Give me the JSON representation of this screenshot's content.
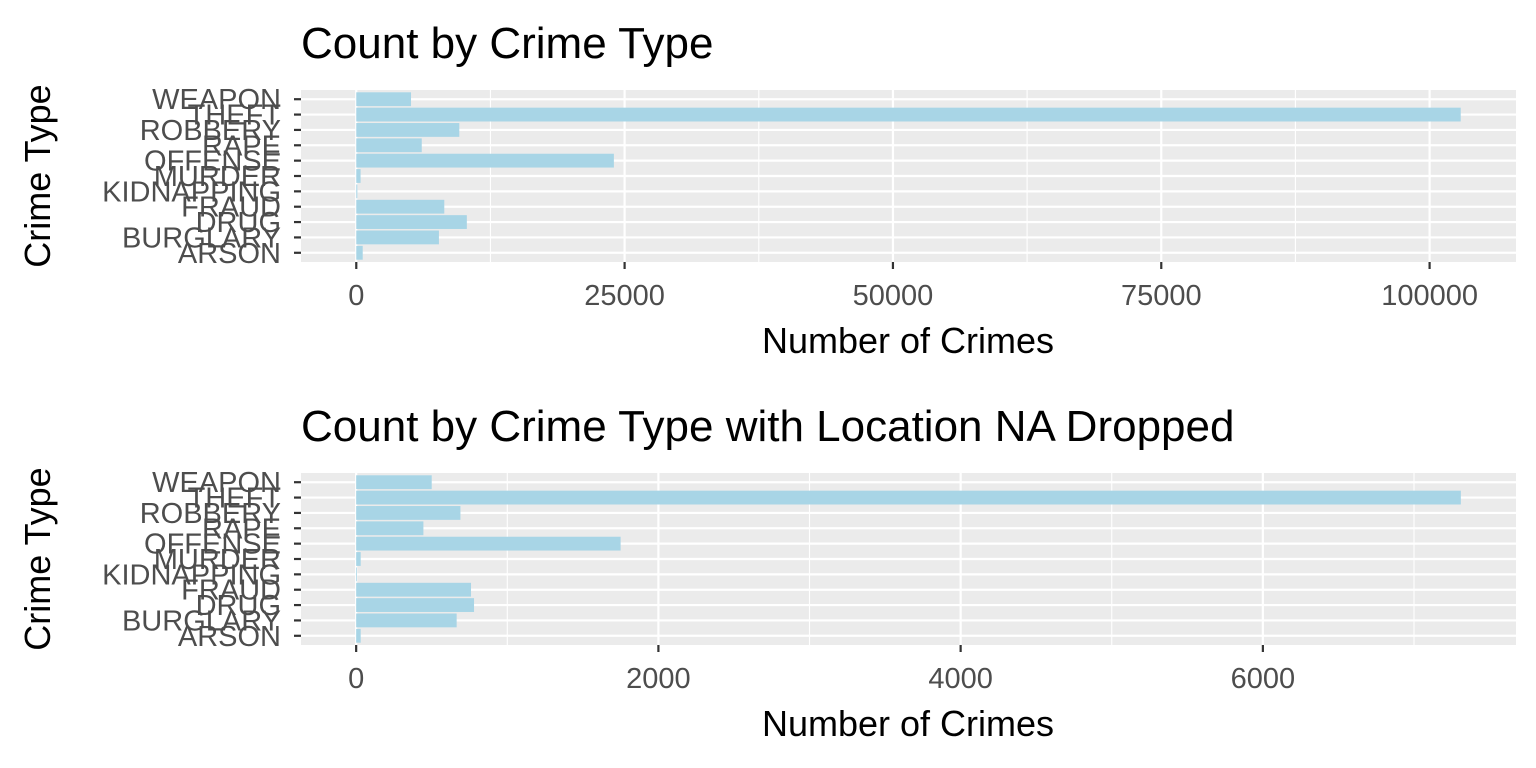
{
  "chart_data": [
    {
      "type": "bar",
      "orientation": "horizontal",
      "title": "Count by Crime Type",
      "xlabel": "Number of Crimes",
      "ylabel": "Crime Type",
      "categories": [
        "ARSON",
        "BURGLARY",
        "DRUG",
        "FRAUD",
        "KIDNAPPING",
        "MURDER",
        "OFFENSE",
        "RAPE",
        "ROBBERY",
        "THEFT",
        "WEAPON"
      ],
      "values": [
        600,
        7700,
        10300,
        8200,
        100,
        400,
        24000,
        6100,
        9600,
        102900,
        5100
      ],
      "xlim": [
        -5150,
        108050
      ],
      "xticks": [
        0,
        25000,
        50000,
        75000,
        100000
      ],
      "xtick_labels": [
        "0",
        "25000",
        "50000",
        "75000",
        "100000"
      ],
      "minor_step": 12500,
      "bar_color": "#a8d5e6",
      "panel_color": "#ebebeb",
      "grid": true
    },
    {
      "type": "bar",
      "orientation": "horizontal",
      "title": "Count by Crime Type with Location NA Dropped",
      "xlabel": "Number of Crimes",
      "ylabel": "Crime Type",
      "categories": [
        "ARSON",
        "BURGLARY",
        "DRUG",
        "FRAUD",
        "KIDNAPPING",
        "MURDER",
        "OFFENSE",
        "RAPE",
        "ROBBERY",
        "THEFT",
        "WEAPON"
      ],
      "values": [
        30,
        665,
        780,
        760,
        5,
        30,
        1750,
        445,
        690,
        7310,
        500
      ],
      "xlim": [
        -365,
        7675
      ],
      "xticks": [
        0,
        2000,
        4000,
        6000
      ],
      "xtick_labels": [
        "0",
        "2000",
        "4000",
        "6000"
      ],
      "minor_step": 1000,
      "bar_color": "#a8d5e6",
      "panel_color": "#ebebeb",
      "grid": true
    }
  ]
}
